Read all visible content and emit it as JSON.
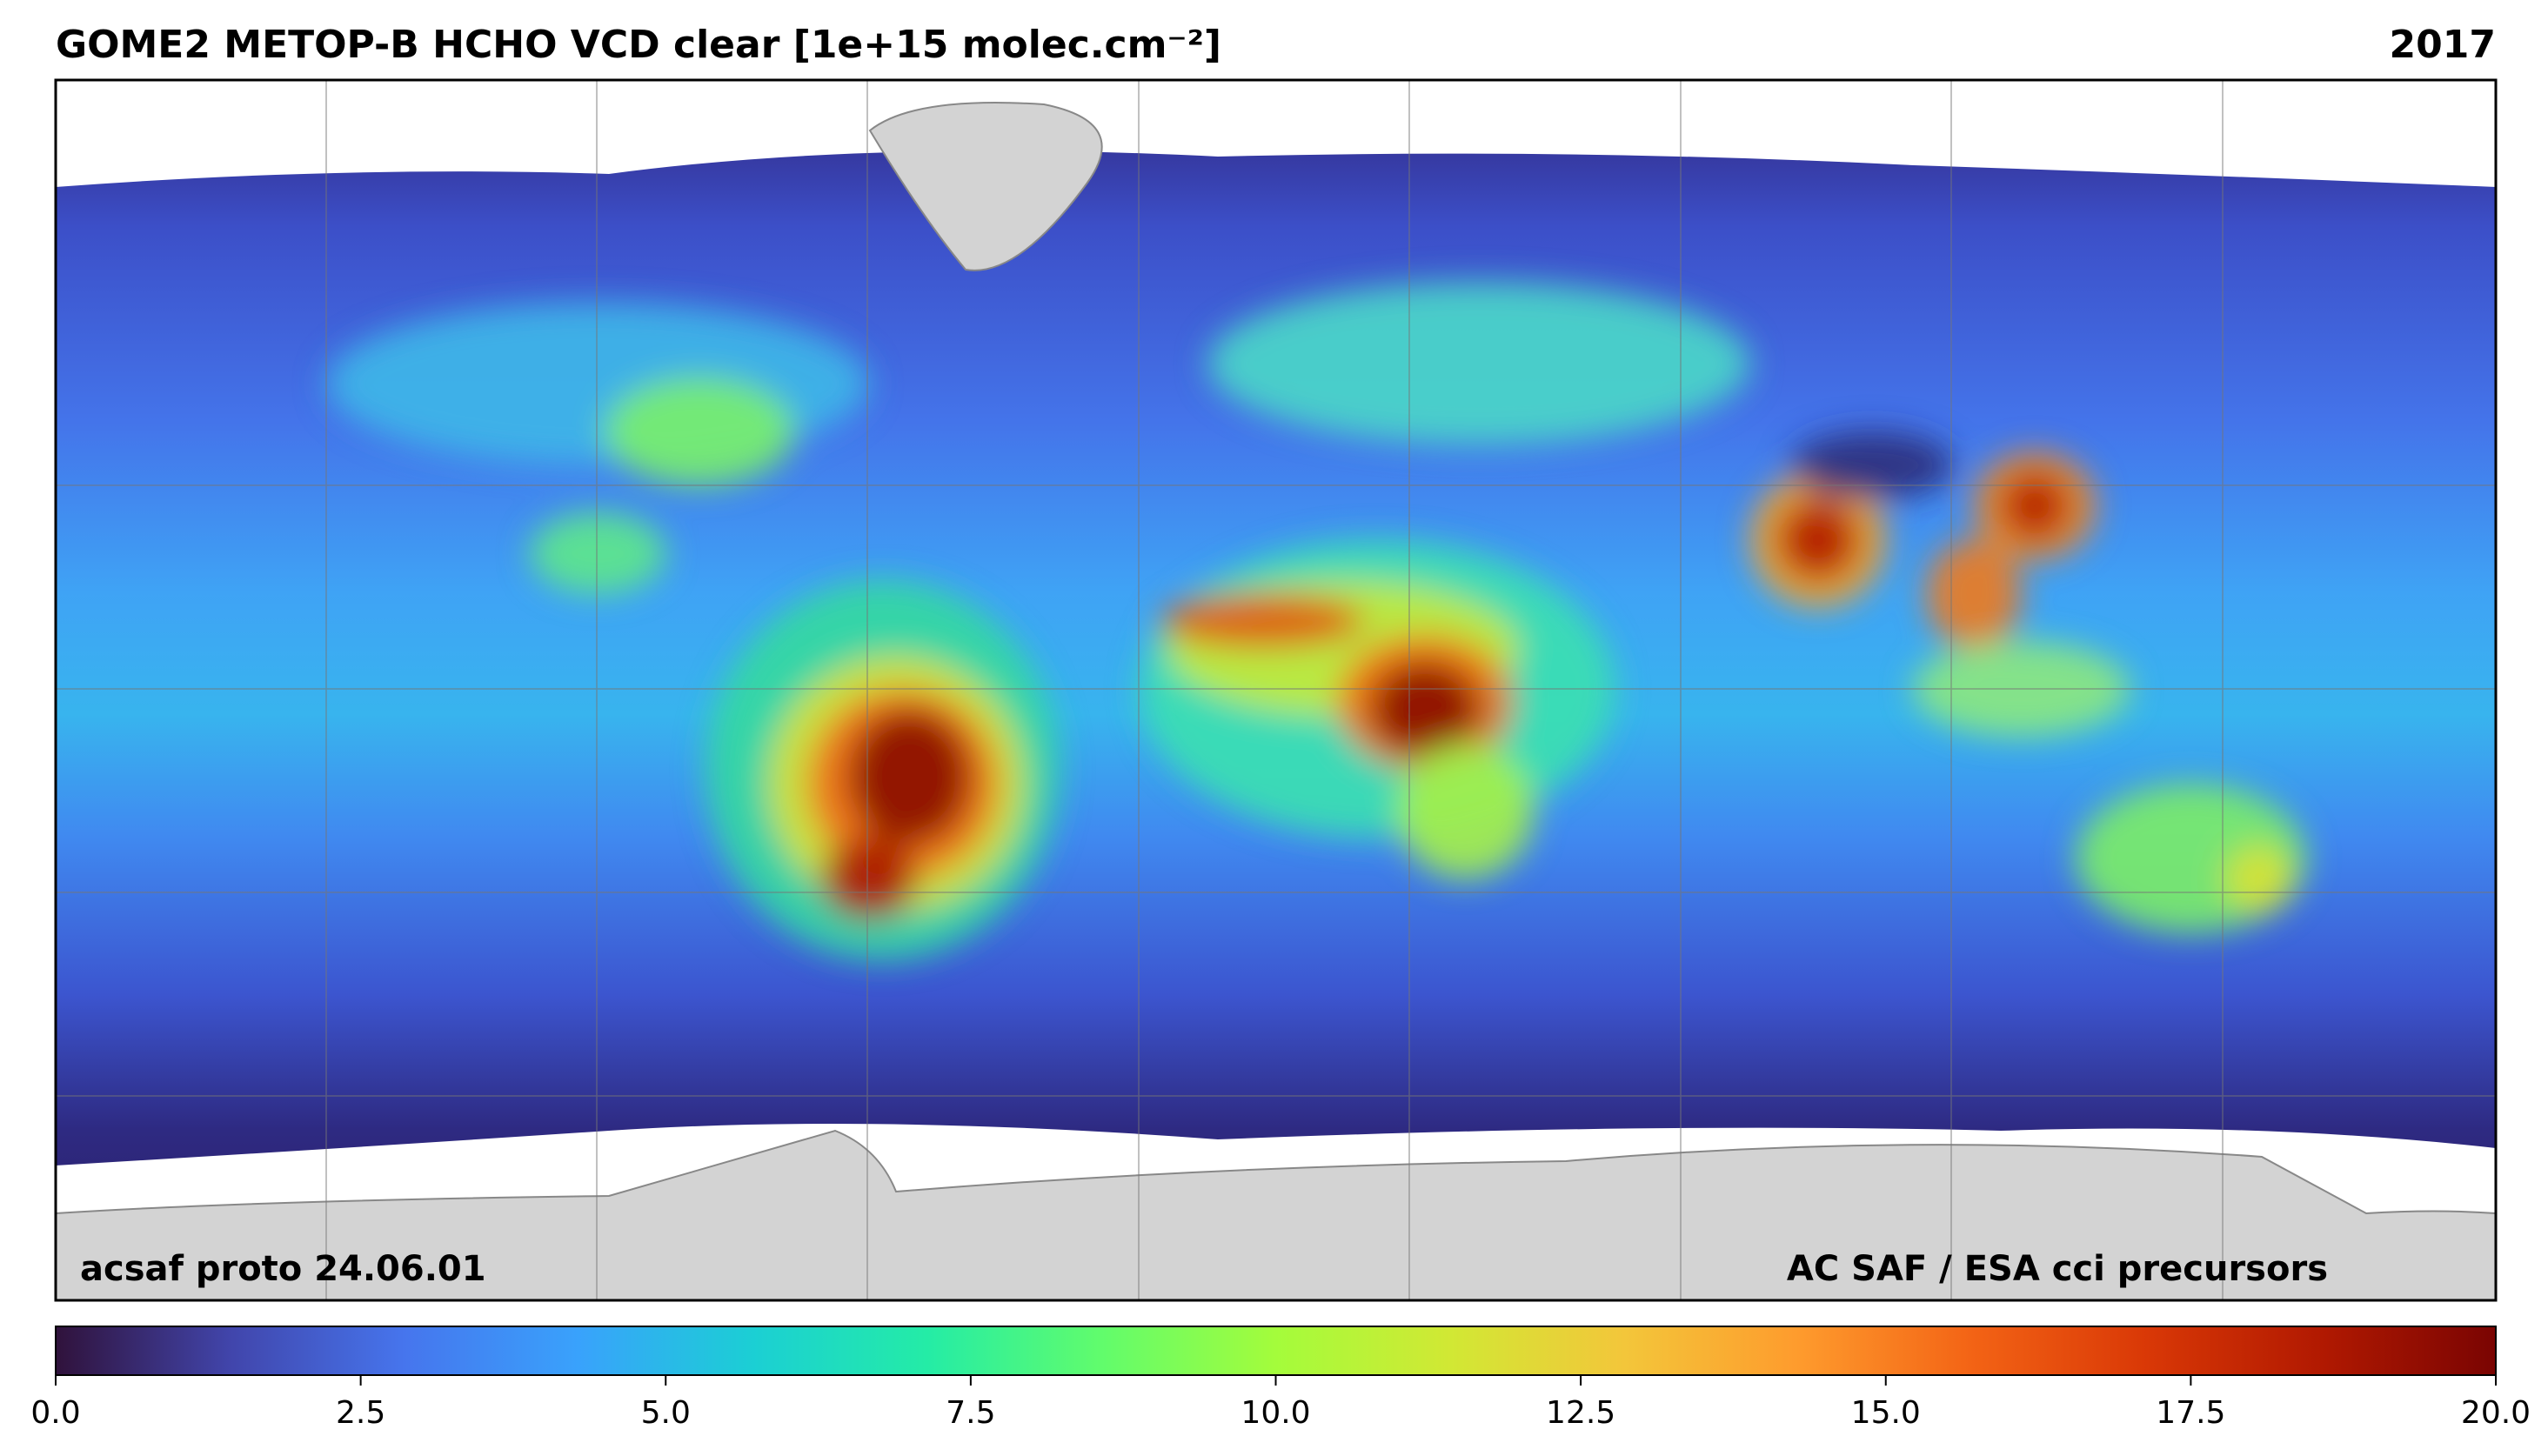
{
  "header": {
    "title": "GOME2 METOP-B HCHO VCD clear [1e+15 molec.cm⁻²]",
    "year": "2017"
  },
  "footer": {
    "left": "acsaf proto 24.06.01",
    "right": "AC SAF / ESA cci precursors"
  },
  "colorbar": {
    "colormap": "turbo",
    "clim": [
      0,
      20
    ],
    "ticks": [
      {
        "value": 0,
        "label": "0.0"
      },
      2.5,
      {
        "value": 5,
        "label": "5.0"
      },
      7.5,
      {
        "value": 10,
        "label": "10.0"
      },
      12.5,
      {
        "value": 15,
        "label": "15.0"
      },
      17.5,
      {
        "value": 20,
        "label": "20.0"
      }
    ]
  }
}
